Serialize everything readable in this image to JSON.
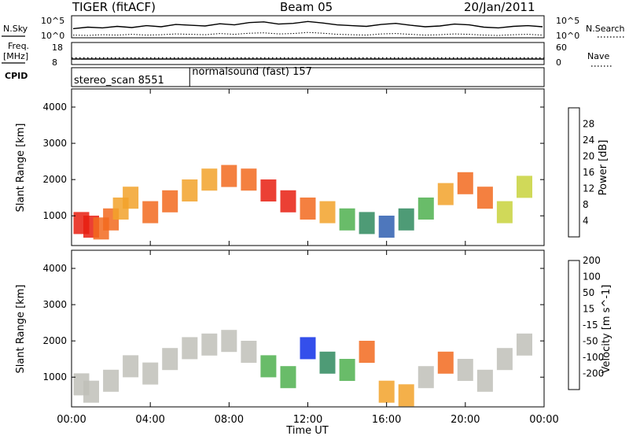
{
  "header": {
    "title": "TIGER (fitACF)",
    "beam": "Beam 05",
    "date": "20/Jan/2011"
  },
  "chart_data": [
    {
      "type": "line",
      "panel": "noise",
      "left_label": "N.Sky",
      "right_label": "N.Search",
      "y_ticks": [
        "10^5",
        "10^0"
      ],
      "right_ticks": [
        "10^5",
        "10^0"
      ],
      "series": [
        {
          "name": "N.Sky",
          "values": [
            2.0,
            2.4,
            2.2,
            2.6,
            2.3,
            2.8,
            2.5,
            3.1,
            2.9,
            2.7,
            3.3,
            3.0,
            3.6,
            3.8,
            3.2,
            3.4,
            3.9,
            3.5,
            3.0,
            2.8,
            2.6,
            3.1,
            3.4,
            2.9,
            2.5,
            2.7,
            3.2,
            3.0,
            2.4,
            2.2,
            2.6,
            2.8,
            2.5
          ]
        },
        {
          "name": "N.Search",
          "values": [
            0.3,
            0.2,
            0.4,
            0.3,
            0.5,
            0.3,
            0.4,
            0.6,
            0.5,
            0.4,
            0.7,
            0.5,
            0.8,
            0.9,
            0.6,
            0.7,
            1.0,
            0.8,
            0.5,
            0.4,
            0.3,
            0.6,
            0.7,
            0.5,
            0.3,
            0.4,
            0.6,
            0.5,
            0.3,
            0.2,
            0.4,
            0.5,
            0.3
          ]
        }
      ]
    },
    {
      "type": "line",
      "panel": "frequency",
      "left_label": "Freq.",
      "left_unit": "[MHz]",
      "right_label": "Nave",
      "left_ticks": [
        "18",
        "8"
      ],
      "right_ticks": [
        "60",
        "0"
      ],
      "series": [
        {
          "name": "Freq.",
          "values": [
            10.5,
            10.5
          ]
        },
        {
          "name": "Nave",
          "values": [
            18,
            18
          ]
        }
      ]
    },
    {
      "type": "table",
      "panel": "cpid",
      "label": "CPID",
      "segments": [
        {
          "name": "stereo_scan",
          "id": "8551",
          "start_hour": 0,
          "end_hour": 6
        },
        {
          "name": "normalsound (fast)",
          "id": "157",
          "start_hour": 6,
          "end_hour": 24
        }
      ]
    },
    {
      "type": "heatmap",
      "panel": "power",
      "ylabel": "Slant Range [km]",
      "yticks": [
        1000,
        2000,
        3000,
        4000
      ],
      "ylim": [
        180,
        4500
      ],
      "xlim": [
        0,
        24
      ],
      "colorbar": {
        "label": "Power [dB]",
        "ticks": [
          "4",
          "8",
          "12",
          "16",
          "20",
          "24",
          "28"
        ],
        "colors": [
          "#1030e8",
          "#2f5fb0",
          "#2f8a5e",
          "#4fb04f",
          "#c8d23c",
          "#f2a22a",
          "#f26a1e",
          "#e81e10"
        ]
      },
      "cells": [
        [
          0.5,
          800,
          7
        ],
        [
          1.0,
          700,
          7
        ],
        [
          1.5,
          650,
          6
        ],
        [
          2.0,
          900,
          6
        ],
        [
          2.5,
          1200,
          5
        ],
        [
          3.0,
          1500,
          5
        ],
        [
          4.0,
          1100,
          6
        ],
        [
          5.0,
          1400,
          6
        ],
        [
          6.0,
          1700,
          5
        ],
        [
          7.0,
          2000,
          5
        ],
        [
          8.0,
          2100,
          6
        ],
        [
          9.0,
          2000,
          6
        ],
        [
          10.0,
          1700,
          7
        ],
        [
          11.0,
          1400,
          7
        ],
        [
          12.0,
          1200,
          6
        ],
        [
          13.0,
          1100,
          5
        ],
        [
          14.0,
          900,
          3
        ],
        [
          15.0,
          800,
          2
        ],
        [
          16.0,
          700,
          1
        ],
        [
          17.0,
          900,
          2
        ],
        [
          18.0,
          1200,
          3
        ],
        [
          19.0,
          1600,
          5
        ],
        [
          20.0,
          1900,
          6
        ],
        [
          21.0,
          1500,
          6
        ],
        [
          22.0,
          1100,
          4
        ],
        [
          23.0,
          1800,
          4
        ]
      ]
    },
    {
      "type": "heatmap",
      "panel": "velocity",
      "ylabel": "Slant Range [km]",
      "yticks": [
        1000,
        2000,
        3000,
        4000
      ],
      "ylim": [
        180,
        4500
      ],
      "xlim": [
        0,
        24
      ],
      "colorbar": {
        "label": "Velocity [m s^-1]",
        "ticks": [
          "-200",
          "-100",
          "-50",
          "-15",
          "15",
          "50",
          "100",
          "200"
        ],
        "colors": [
          "#e81e10",
          "#f26a1e",
          "#f2a22a",
          "#c0c0b8",
          "#c0c0b8",
          "#4fb04f",
          "#2f8a5e",
          "#1030e8"
        ]
      },
      "cells": [
        [
          0.5,
          800,
          3
        ],
        [
          1.0,
          600,
          3
        ],
        [
          2.0,
          900,
          3
        ],
        [
          3.0,
          1300,
          3
        ],
        [
          4.0,
          1100,
          3
        ],
        [
          5.0,
          1500,
          4
        ],
        [
          6.0,
          1800,
          4
        ],
        [
          7.0,
          1900,
          3
        ],
        [
          8.0,
          2000,
          3
        ],
        [
          9.0,
          1700,
          3
        ],
        [
          10.0,
          1300,
          5
        ],
        [
          11.0,
          1000,
          5
        ],
        [
          12.0,
          1800,
          7
        ],
        [
          13.0,
          1400,
          6
        ],
        [
          14.0,
          1200,
          5
        ],
        [
          15.0,
          1700,
          1
        ],
        [
          16.0,
          600,
          2
        ],
        [
          17.0,
          500,
          2
        ],
        [
          18.0,
          1000,
          3
        ],
        [
          19.0,
          1400,
          1
        ],
        [
          20.0,
          1200,
          3
        ],
        [
          21.0,
          900,
          3
        ],
        [
          22.0,
          1500,
          3
        ],
        [
          23.0,
          1900,
          3
        ]
      ]
    }
  ],
  "x_axis": {
    "label": "Time UT",
    "ticks": [
      "00:00",
      "04:00",
      "08:00",
      "12:00",
      "16:00",
      "20:00",
      "00:00"
    ],
    "range_hours": [
      0,
      24
    ]
  }
}
